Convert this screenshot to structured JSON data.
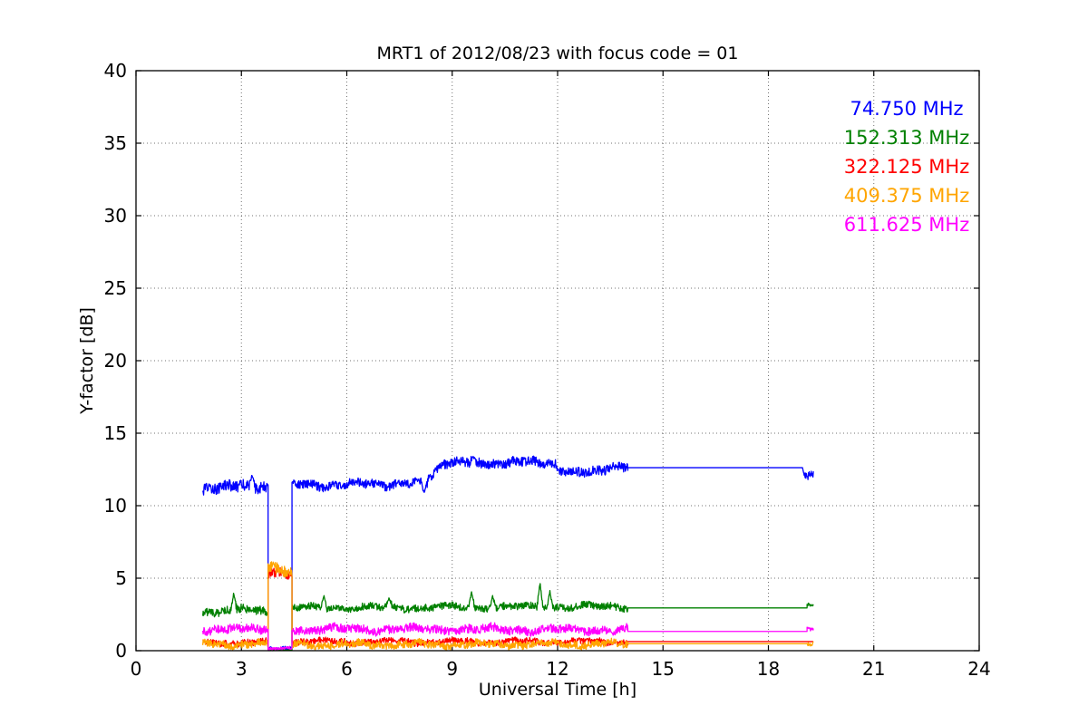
{
  "chart_data": {
    "type": "line",
    "title": "MRT1 of 2012/08/23 with focus code = 01",
    "xlabel": "Universal Time [h]",
    "ylabel": "Y-factor [dB]",
    "xlim": [
      0,
      24
    ],
    "ylim": [
      0,
      40
    ],
    "xticks": [
      0,
      3,
      6,
      9,
      12,
      15,
      18,
      21,
      24
    ],
    "yticks": [
      0,
      5,
      10,
      15,
      20,
      25,
      30,
      35,
      40
    ],
    "grid": "dotted black lines at every major tick, both axes",
    "frame_color": "#000000",
    "legend": {
      "position": "upper right inside axes",
      "style": "colored text labels only, no marker lines"
    },
    "series": [
      {
        "name": "74.750 MHz",
        "color": "#0000ff",
        "description": "noisy trace ~11-13 dB from 1.9h to 14h, drops to ~0.2 dB during 3.76-4.44h, flat 12.6 dB line 14-19h, short noisy end near 12 dB at 19.0-19.3h",
        "segments": [
          {
            "t0": 1.9,
            "t1": 3.76,
            "y0": 11.15,
            "y1": 11.35,
            "noise": 0.38,
            "spikes": [
              [
                3.3,
                12.15
              ]
            ]
          },
          {
            "t0": 3.76,
            "t1": 4.44,
            "y0": 0.2,
            "y1": 0.2,
            "noise": 0.12
          },
          {
            "t0": 4.44,
            "t1": 8.3,
            "y0": 11.4,
            "y1": 11.55,
            "noise": 0.3,
            "spikes": [
              [
                8.2,
                10.85
              ]
            ]
          },
          {
            "t0": 8.3,
            "t1": 8.65,
            "y0": 11.9,
            "y1": 12.85,
            "noise": 0.3
          },
          {
            "t0": 8.65,
            "t1": 11.95,
            "y0": 12.9,
            "y1": 13.0,
            "noise": 0.32,
            "spikes": [
              [
                9.6,
                13.4
              ]
            ]
          },
          {
            "t0": 11.95,
            "t1": 14.0,
            "y0": 12.35,
            "y1": 12.6,
            "noise": 0.32
          },
          {
            "t0": 14.0,
            "t1": 18.97,
            "y0": 12.62,
            "y1": 12.62,
            "noise": 0
          },
          {
            "t0": 19.02,
            "t1": 19.28,
            "y0": 12.1,
            "y1": 11.95,
            "noise": 0.3
          }
        ]
      },
      {
        "name": "152.313 MHz",
        "color": "#008000",
        "description": "noisy trace ~2.7-3.1 dB with spikes up to 4.7 dB, vanishes to ~0 during 3.76-4.44h, flat ~2.95 dB line after 14h",
        "segments": [
          {
            "t0": 1.9,
            "t1": 3.76,
            "y0": 2.72,
            "y1": 2.8,
            "noise": 0.28,
            "spikes": [
              [
                2.78,
                3.95
              ]
            ]
          },
          {
            "t0": 3.76,
            "t1": 4.44,
            "y0": 0.03,
            "y1": 0.03,
            "noise": 0.03
          },
          {
            "t0": 4.44,
            "t1": 14.0,
            "y0": 2.95,
            "y1": 3.05,
            "noise": 0.25,
            "spikes": [
              [
                5.35,
                3.8
              ],
              [
                7.2,
                3.6
              ],
              [
                9.55,
                4.05
              ],
              [
                10.15,
                3.75
              ],
              [
                11.5,
                4.65
              ],
              [
                11.78,
                4.1
              ]
            ]
          },
          {
            "t0": 14.0,
            "t1": 19.1,
            "y0": 2.95,
            "y1": 2.95,
            "noise": 0
          },
          {
            "t0": 19.1,
            "t1": 19.28,
            "y0": 3.15,
            "y1": 3.1,
            "noise": 0.13
          }
        ]
      },
      {
        "name": "322.125 MHz",
        "color": "#ff0000",
        "description": "noisy trace ~0.6 dB, spikes up to ~5.3 dB during 3.76-4.44h, flat 0.63 dB line after 14h",
        "segments": [
          {
            "t0": 1.9,
            "t1": 3.76,
            "y0": 0.6,
            "y1": 0.6,
            "noise": 0.22
          },
          {
            "t0": 3.76,
            "t1": 4.44,
            "y0": 5.3,
            "y1": 5.25,
            "noise": 0.35
          },
          {
            "t0": 4.44,
            "t1": 14.0,
            "y0": 0.62,
            "y1": 0.62,
            "noise": 0.22
          },
          {
            "t0": 14.0,
            "t1": 19.28,
            "y0": 0.63,
            "y1": 0.63,
            "noise": 0
          }
        ]
      },
      {
        "name": "409.375 MHz",
        "color": "#ffa500",
        "description": "noisy trace ~0.45 dB, spikes up to ~5.6 dB during 3.76-4.44h, flat 0.48 dB line after 14h",
        "segments": [
          {
            "t0": 1.9,
            "t1": 3.76,
            "y0": 0.45,
            "y1": 0.45,
            "noise": 0.25
          },
          {
            "t0": 3.76,
            "t1": 4.44,
            "y0": 5.55,
            "y1": 5.5,
            "noise": 0.4
          },
          {
            "t0": 4.44,
            "t1": 14.0,
            "y0": 0.42,
            "y1": 0.45,
            "noise": 0.26
          },
          {
            "t0": 14.0,
            "t1": 19.1,
            "y0": 0.48,
            "y1": 0.48,
            "noise": 0
          },
          {
            "t0": 19.1,
            "t1": 19.28,
            "y0": 0.5,
            "y1": 0.5,
            "noise": 0.16
          }
        ]
      },
      {
        "name": "611.625 MHz",
        "color": "#ff00ff",
        "description": "noisy trace ~1.5 dB, drops to ~0.15 dB during 3.76-4.44h, flat 1.33 dB line after 14h",
        "segments": [
          {
            "t0": 1.9,
            "t1": 3.76,
            "y0": 1.5,
            "y1": 1.5,
            "noise": 0.3
          },
          {
            "t0": 3.76,
            "t1": 4.44,
            "y0": 0.15,
            "y1": 0.15,
            "noise": 0.1
          },
          {
            "t0": 4.44,
            "t1": 14.0,
            "y0": 1.48,
            "y1": 1.45,
            "noise": 0.3
          },
          {
            "t0": 14.0,
            "t1": 19.1,
            "y0": 1.33,
            "y1": 1.33,
            "noise": 0
          },
          {
            "t0": 19.1,
            "t1": 19.28,
            "y0": 1.47,
            "y1": 1.45,
            "noise": 0.12
          }
        ]
      }
    ]
  }
}
